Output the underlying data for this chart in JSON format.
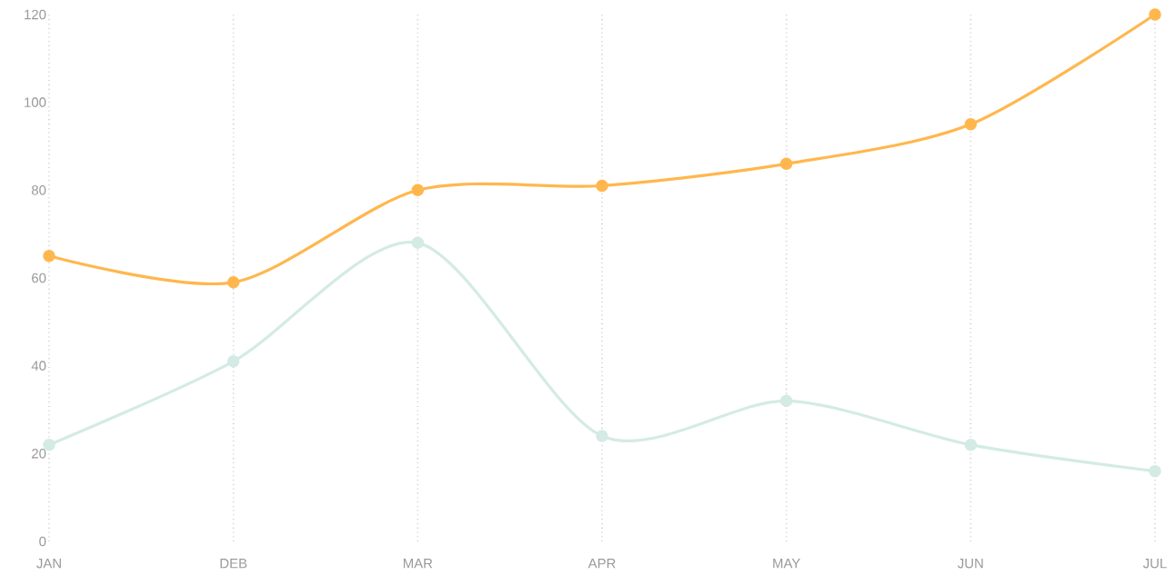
{
  "chart_data": {
    "type": "line",
    "categories": [
      "JAN",
      "DEB",
      "MAR",
      "APR",
      "MAY",
      "JUN",
      "JUL"
    ],
    "series": [
      {
        "color": "#ffb74d",
        "values": [
          65,
          59,
          80,
          81,
          86,
          95,
          120
        ]
      },
      {
        "color": "#d4ebe5",
        "values": [
          22,
          41,
          68,
          24,
          32,
          22,
          16
        ]
      }
    ],
    "ylim": [
      0,
      120
    ],
    "yticks": [
      0,
      20,
      40,
      60,
      80,
      100,
      120
    ],
    "grid": "x",
    "marker": "circle",
    "line_style": "solid"
  }
}
